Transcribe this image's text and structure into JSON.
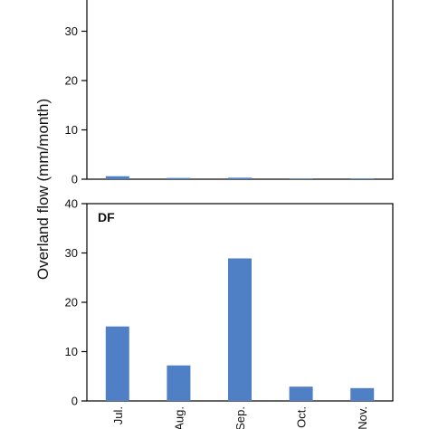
{
  "chart_data": [
    {
      "type": "bar",
      "panel_label": "",
      "categories": [
        "Jul.",
        "Aug.",
        "Sep.",
        "Oct.",
        "Nov."
      ],
      "values": [
        0.6,
        0.25,
        0.3,
        0.05,
        0.15
      ],
      "ylabel": "Overland flow (mm/month)",
      "ylim": [
        0,
        40
      ],
      "yticks": [
        0,
        10,
        20,
        30
      ],
      "bar_color": "#4f7fc4",
      "grid": false
    },
    {
      "type": "bar",
      "panel_label": "DF",
      "categories": [
        "Jul.",
        "Aug.",
        "Sep.",
        "Oct.",
        "Nov."
      ],
      "values": [
        15.1,
        7.2,
        28.9,
        2.9,
        2.6
      ],
      "ylim": [
        0,
        40
      ],
      "yticks": [
        0,
        10,
        20,
        30,
        40
      ],
      "bar_color": "#4f7fc4",
      "grid": false
    }
  ]
}
